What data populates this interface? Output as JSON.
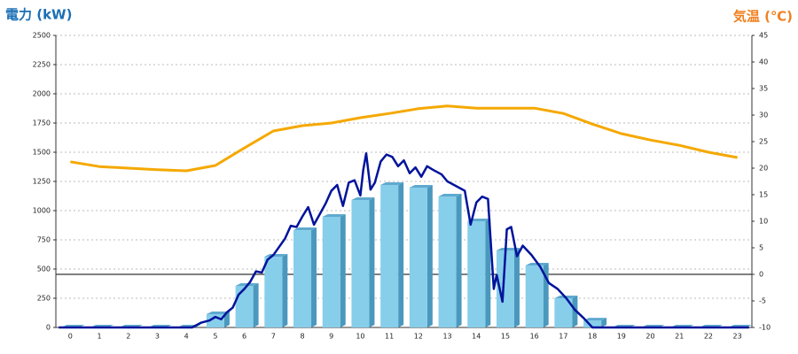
{
  "chart_data": {
    "type": "bar",
    "title_left": "電力 (kW)",
    "title_right": "気温 (℃)",
    "categories": [
      "0",
      "1",
      "2",
      "3",
      "4",
      "5",
      "6",
      "7",
      "8",
      "9",
      "10",
      "11",
      "12",
      "13",
      "14",
      "15",
      "16",
      "17",
      "18",
      "19",
      "20",
      "21",
      "22",
      "23"
    ],
    "bars": {
      "color": "#87ceeb",
      "values": [
        0,
        0,
        0,
        0,
        0,
        114,
        356,
        606,
        833,
        947,
        1091,
        1220,
        1197,
        1121,
        909,
        659,
        530,
        250,
        60,
        0,
        0,
        0,
        0,
        0
      ]
    },
    "temperature": {
      "color": "#f5a800",
      "axis": "y2",
      "values": [
        21.2,
        20.3,
        20,
        19.7,
        19.5,
        20.5,
        23.8,
        27,
        28,
        28.5,
        29.5,
        30.3,
        31.2,
        31.7,
        31.3,
        31.3,
        31.3,
        30.3,
        28.3,
        26.5,
        25.3,
        24.3,
        23,
        22
      ]
    },
    "power": {
      "color": "#00139a",
      "x": [
        -0.4,
        4.2,
        4.5,
        4.8,
        5.0,
        5.2,
        5.4,
        5.6,
        5.8,
        6.0,
        6.2,
        6.4,
        6.6,
        6.8,
        7.0,
        7.2,
        7.4,
        7.6,
        7.8,
        8.0,
        8.2,
        8.4,
        8.6,
        8.8,
        9.0,
        9.2,
        9.4,
        9.6,
        9.8,
        10.0,
        10.1,
        10.2,
        10.35,
        10.5,
        10.7,
        10.9,
        11.1,
        11.3,
        11.5,
        11.7,
        11.9,
        12.1,
        12.3,
        12.5,
        12.8,
        13.0,
        13.3,
        13.6,
        13.8,
        14.0,
        14.2,
        14.4,
        14.6,
        14.7,
        14.9,
        15.05,
        15.2,
        15.4,
        15.6,
        15.9,
        16.2,
        16.5,
        16.8,
        17.1,
        17.4,
        17.7,
        18.0,
        23.4
      ],
      "values": [
        0,
        0,
        40,
        60,
        90,
        70,
        130,
        170,
        280,
        330,
        390,
        480,
        470,
        580,
        620,
        690,
        760,
        870,
        860,
        950,
        1030,
        880,
        970,
        1060,
        1170,
        1220,
        1040,
        1240,
        1260,
        1130,
        1350,
        1490,
        1180,
        1240,
        1420,
        1480,
        1460,
        1380,
        1430,
        1320,
        1370,
        1290,
        1380,
        1350,
        1310,
        1250,
        1210,
        1170,
        880,
        1070,
        1120,
        1100,
        330,
        450,
        220,
        840,
        860,
        610,
        700,
        620,
        520,
        380,
        330,
        250,
        150,
        80,
        0,
        0
      ]
    },
    "ylim": [
      0,
      2500
    ],
    "yticks": [
      0,
      250,
      500,
      750,
      1000,
      1250,
      1500,
      1750,
      2000,
      2250,
      2500
    ],
    "y2lim": [
      -10,
      45
    ],
    "y2ticks": [
      -10,
      -5,
      0,
      5,
      10,
      15,
      20,
      25,
      30,
      35,
      40,
      45
    ],
    "grid": true
  }
}
